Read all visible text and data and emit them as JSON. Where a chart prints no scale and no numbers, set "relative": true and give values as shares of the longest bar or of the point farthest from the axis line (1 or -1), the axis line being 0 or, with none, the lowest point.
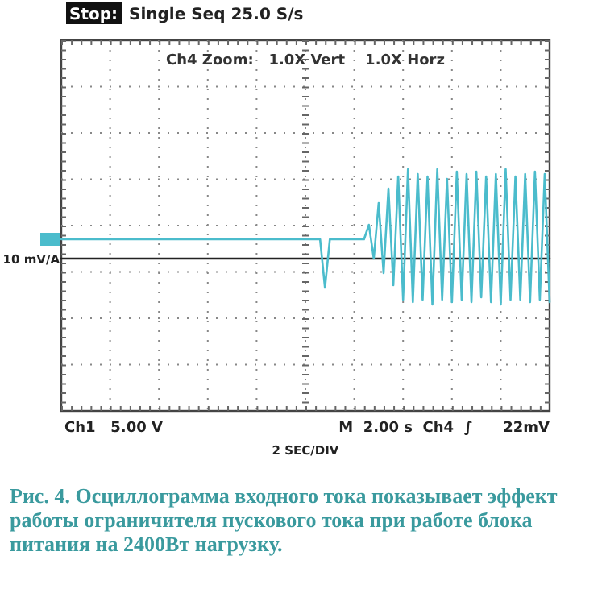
{
  "chart_data": {
    "type": "line",
    "relative": true,
    "grid": true,
    "marker": "none",
    "line_style": "solid",
    "annotations": [
      "Stop:",
      "Single Seq  25.0 S/s",
      "Ch4 Zoom:   1.0X Vert    1.0X Horz",
      "10 mV/A",
      "Ch1   5.00 V",
      "M  2.00 s  Ch4  ∫      22mV",
      "Рис. 4. Осциллограмма входного тока показывает эффект работы ограничителя пускового тока при работе блока питания на 2400Вт нагрузку.",
      "2 SEC/DIV"
    ],
    "categories": [
      null,
      null,
      null,
      null,
      null,
      null,
      null,
      null,
      null,
      null,
      null,
      null,
      null,
      null,
      null,
      null,
      null,
      null,
      null,
      null,
      null,
      null,
      null,
      null,
      null,
      null,
      null,
      null,
      null,
      null,
      null,
      null,
      null,
      null,
      null,
      null,
      null,
      null,
      null,
      null,
      null,
      null,
      null,
      null,
      null,
      null,
      null,
      null,
      null,
      null,
      null,
      null,
      null,
      null,
      null,
      null,
      null,
      null,
      null,
      null,
      null,
      null,
      null,
      null,
      null,
      null,
      null,
      null,
      null,
      null,
      null,
      null,
      null,
      null,
      null,
      null,
      null,
      null,
      null,
      null,
      null,
      null,
      null,
      null,
      null,
      null,
      null,
      null,
      null,
      null,
      null,
      null,
      null,
      null,
      null,
      null,
      null,
      null,
      null,
      null,
      null
    ],
    "series": [
      {
        "color": "#222222",
        "values": [
          0.63,
          0.63,
          0.63,
          0.63,
          0.63,
          0.63,
          0.63,
          0.63,
          0.63,
          0.63,
          0.63,
          0.63,
          0.63,
          0.63,
          0.63,
          0.63,
          0.63,
          0.63,
          0.63,
          0.63,
          0.63,
          0.63,
          0.63,
          0.63,
          0.63,
          0.63,
          0.63,
          0.63,
          0.63,
          0.63,
          0.63,
          0.63,
          0.63,
          0.63,
          0.63,
          0.63,
          0.63,
          0.63,
          0.63,
          0.63,
          0.63,
          0.63,
          0.63,
          0.63,
          0.63,
          0.63,
          0.63,
          0.63,
          0.63,
          0.63,
          0.63,
          0.63,
          0.63,
          0.63,
          0.63,
          0.63,
          0.63,
          0.63,
          0.63,
          0.63,
          0.63,
          0.63,
          0.63,
          0.63,
          0.63,
          0.63,
          0.63,
          0.63,
          0.63,
          0.63,
          0.63,
          0.63,
          0.63,
          0.63,
          0.63,
          0.63,
          0.63,
          0.63,
          0.63,
          0.63,
          0.63,
          0.63,
          0.63,
          0.63,
          0.63,
          0.63,
          0.63,
          0.63,
          0.63,
          0.63,
          0.63,
          0.63,
          0.63,
          0.63,
          0.63,
          0.63,
          0.63,
          0.63,
          0.63,
          0.63,
          0.63
        ]
      },
      {
        "color": "#4bbccc",
        "values": [
          0.71,
          0.71,
          0.71,
          0.71,
          0.71,
          0.71,
          0.71,
          0.71,
          0.71,
          0.71,
          0.71,
          0.71,
          0.71,
          0.71,
          0.71,
          0.71,
          0.71,
          0.71,
          0.71,
          0.71,
          0.71,
          0.71,
          0.71,
          0.71,
          0.71,
          0.71,
          0.71,
          0.71,
          0.71,
          0.71,
          0.71,
          0.71,
          0.71,
          0.71,
          0.71,
          0.71,
          0.71,
          0.71,
          0.71,
          0.71,
          0.71,
          0.71,
          0.71,
          0.71,
          0.71,
          0.71,
          0.71,
          0.71,
          0.71,
          0.71,
          0.71,
          0.71,
          0.71,
          0.71,
          0.51,
          0.71,
          0.71,
          0.71,
          0.71,
          0.71,
          0.71,
          0.71,
          0.71,
          0.77,
          0.63,
          0.86,
          0.57,
          0.92,
          0.52,
          0.97,
          0.46,
          1,
          0.45,
          0.98,
          0.46,
          0.97,
          0.44,
          1,
          0.46,
          0.96,
          0.45,
          0.99,
          0.46,
          0.98,
          0.45,
          0.99,
          0.47,
          0.97,
          0.45,
          0.98,
          0.44,
          1,
          0.46,
          0.97,
          0.46,
          0.98,
          0.45,
          0.99,
          0.46,
          0.98,
          0.45
        ]
      }
    ]
  }
}
